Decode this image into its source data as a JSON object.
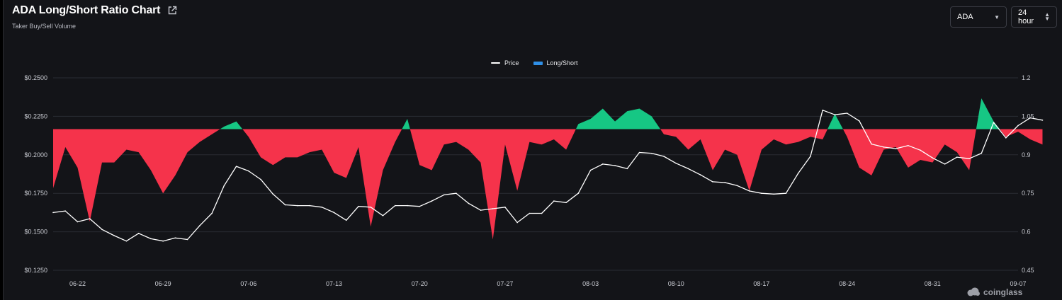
{
  "header": {
    "title": "ADA Long/Short Ratio Chart",
    "subtitle": "Taker Buy/Sell Volume"
  },
  "controls": {
    "coin": "ADA",
    "period": "24 hour"
  },
  "watermark": "coinglass",
  "colors": {
    "background": "#131418",
    "grid": "#2a2c33",
    "price": "#ffffff",
    "long": "#16c784",
    "short": "#f5334b",
    "legend_long_short": "#2f8fe6"
  },
  "chart_data": {
    "type": "line",
    "title": "",
    "xlabel": "",
    "legend": [
      "Price",
      "Long/Short"
    ],
    "legend_position": "top-center",
    "grid": true,
    "x_ticks": [
      "06-22",
      "06-29",
      "07-06",
      "07-13",
      "07-20",
      "07-27",
      "08-03",
      "08-10",
      "08-17",
      "08-24",
      "08-31",
      "09-07"
    ],
    "x_range": [
      "06-20",
      "09-07"
    ],
    "y_left": {
      "ticks": [
        "$0.2500",
        "$0.2250",
        "$0.2000",
        "$0.1750",
        "$0.1500",
        "$0.1250"
      ],
      "range": [
        0.125,
        0.25
      ]
    },
    "y_right": {
      "ticks": [
        "1.2",
        "1.05",
        "0.9",
        "0.75",
        "0.6",
        "0.45"
      ],
      "range": [
        0.45,
        1.2
      ],
      "baseline": 1.0
    },
    "series": [
      {
        "name": "Price",
        "axis": "left",
        "points": [
          [
            "06-20",
            0.1625
          ],
          [
            "06-21",
            0.1635
          ],
          [
            "06-22",
            0.1565
          ],
          [
            "06-23",
            0.1585
          ],
          [
            "06-24",
            0.1515
          ],
          [
            "06-25",
            0.1475
          ],
          [
            "06-26",
            0.144
          ],
          [
            "06-27",
            0.149
          ],
          [
            "06-28",
            0.1455
          ],
          [
            "06-29",
            0.144
          ],
          [
            "06-30",
            0.146
          ],
          [
            "07-01",
            0.145
          ],
          [
            "07-02",
            0.154
          ],
          [
            "07-03",
            0.162
          ],
          [
            "07-04",
            0.18
          ],
          [
            "07-05",
            0.1925
          ],
          [
            "07-06",
            0.1895
          ],
          [
            "07-07",
            0.184
          ],
          [
            "07-08",
            0.1745
          ],
          [
            "07-09",
            0.1675
          ],
          [
            "07-10",
            0.167
          ],
          [
            "07-11",
            0.167
          ],
          [
            "07-12",
            0.166
          ],
          [
            "07-13",
            0.1625
          ],
          [
            "07-14",
            0.1575
          ],
          [
            "07-15",
            0.1665
          ],
          [
            "07-16",
            0.166
          ],
          [
            "07-17",
            0.1605
          ],
          [
            "07-18",
            0.167
          ],
          [
            "07-19",
            0.167
          ],
          [
            "07-20",
            0.1665
          ],
          [
            "07-21",
            0.17
          ],
          [
            "07-22",
            0.174
          ],
          [
            "07-23",
            0.175
          ],
          [
            "07-24",
            0.1685
          ],
          [
            "07-25",
            0.164
          ],
          [
            "07-26",
            0.165
          ],
          [
            "07-27",
            0.166
          ],
          [
            "07-28",
            0.156
          ],
          [
            "07-29",
            0.162
          ],
          [
            "07-30",
            0.162
          ],
          [
            "07-31",
            0.17
          ],
          [
            "08-01",
            0.169
          ],
          [
            "08-02",
            0.175
          ],
          [
            "08-03",
            0.19
          ],
          [
            "08-04",
            0.194
          ],
          [
            "08-05",
            0.193
          ],
          [
            "08-06",
            0.191
          ],
          [
            "08-07",
            0.2015
          ],
          [
            "08-08",
            0.201
          ],
          [
            "08-09",
            0.199
          ],
          [
            "08-10",
            0.1945
          ],
          [
            "08-11",
            0.191
          ],
          [
            "08-12",
            0.187
          ],
          [
            "08-13",
            0.1825
          ],
          [
            "08-14",
            0.182
          ],
          [
            "08-15",
            0.18
          ],
          [
            "08-16",
            0.1765
          ],
          [
            "08-17",
            0.175
          ],
          [
            "08-18",
            0.1745
          ],
          [
            "08-19",
            0.175
          ],
          [
            "08-20",
            0.188
          ],
          [
            "08-21",
            0.199
          ],
          [
            "08-22",
            0.229
          ],
          [
            "08-23",
            0.226
          ],
          [
            "08-24",
            0.227
          ],
          [
            "08-25",
            0.222
          ],
          [
            "08-26",
            0.207
          ],
          [
            "08-27",
            0.205
          ],
          [
            "08-28",
            0.204
          ],
          [
            "08-29",
            0.206
          ],
          [
            "08-30",
            0.203
          ],
          [
            "08-31",
            0.198
          ],
          [
            "09-01",
            0.194
          ],
          [
            "09-02",
            0.1985
          ],
          [
            "09-03",
            0.1975
          ],
          [
            "09-04",
            0.201
          ],
          [
            "09-05",
            0.221
          ],
          [
            "09-06",
            0.211
          ],
          [
            "09-07",
            0.219
          ],
          [
            "09-08",
            0.224
          ],
          [
            "09-09",
            0.2225
          ]
        ]
      },
      {
        "name": "Long/Short",
        "axis": "right",
        "points": [
          [
            "06-20",
            0.77
          ],
          [
            "06-21",
            0.93
          ],
          [
            "06-22",
            0.85
          ],
          [
            "06-23",
            0.64
          ],
          [
            "06-24",
            0.87
          ],
          [
            "06-25",
            0.87
          ],
          [
            "06-26",
            0.92
          ],
          [
            "06-27",
            0.91
          ],
          [
            "06-28",
            0.84
          ],
          [
            "06-29",
            0.75
          ],
          [
            "06-30",
            0.82
          ],
          [
            "07-01",
            0.91
          ],
          [
            "07-02",
            0.95
          ],
          [
            "07-03",
            0.98
          ],
          [
            "07-04",
            1.01
          ],
          [
            "07-05",
            1.03
          ],
          [
            "07-06",
            0.97
          ],
          [
            "07-07",
            0.89
          ],
          [
            "07-08",
            0.86
          ],
          [
            "07-09",
            0.89
          ],
          [
            "07-10",
            0.89
          ],
          [
            "07-11",
            0.91
          ],
          [
            "07-12",
            0.92
          ],
          [
            "07-13",
            0.83
          ],
          [
            "07-14",
            0.81
          ],
          [
            "07-15",
            0.93
          ],
          [
            "07-16",
            0.62
          ],
          [
            "07-17",
            0.84
          ],
          [
            "07-18",
            0.95
          ],
          [
            "07-19",
            1.04
          ],
          [
            "07-20",
            0.86
          ],
          [
            "07-21",
            0.84
          ],
          [
            "07-22",
            0.94
          ],
          [
            "07-23",
            0.95
          ],
          [
            "07-24",
            0.92
          ],
          [
            "07-25",
            0.87
          ],
          [
            "07-26",
            0.57
          ],
          [
            "07-27",
            0.94
          ],
          [
            "07-28",
            0.76
          ],
          [
            "07-29",
            0.95
          ],
          [
            "07-30",
            0.94
          ],
          [
            "07-31",
            0.96
          ],
          [
            "08-01",
            0.92
          ],
          [
            "08-02",
            1.02
          ],
          [
            "08-03",
            1.04
          ],
          [
            "08-04",
            1.08
          ],
          [
            "08-05",
            1.03
          ],
          [
            "08-06",
            1.07
          ],
          [
            "08-07",
            1.08
          ],
          [
            "08-08",
            1.05
          ],
          [
            "08-09",
            0.98
          ],
          [
            "08-10",
            0.97
          ],
          [
            "08-11",
            0.92
          ],
          [
            "08-12",
            0.96
          ],
          [
            "08-13",
            0.84
          ],
          [
            "08-14",
            0.92
          ],
          [
            "08-15",
            0.9
          ],
          [
            "08-16",
            0.76
          ],
          [
            "08-17",
            0.92
          ],
          [
            "08-18",
            0.96
          ],
          [
            "08-19",
            0.94
          ],
          [
            "08-20",
            0.95
          ],
          [
            "08-21",
            0.97
          ],
          [
            "08-22",
            0.96
          ],
          [
            "08-23",
            1.06
          ],
          [
            "08-24",
            0.97
          ],
          [
            "08-25",
            0.85
          ],
          [
            "08-26",
            0.82
          ],
          [
            "08-27",
            0.92
          ],
          [
            "08-28",
            0.93
          ],
          [
            "08-29",
            0.85
          ],
          [
            "08-30",
            0.88
          ],
          [
            "08-31",
            0.87
          ],
          [
            "09-01",
            0.94
          ],
          [
            "09-02",
            0.91
          ],
          [
            "09-03",
            0.84
          ],
          [
            "09-04",
            1.12
          ],
          [
            "09-05",
            1.03
          ],
          [
            "09-06",
            0.97
          ],
          [
            "09-07",
            0.99
          ],
          [
            "09-08",
            0.96
          ],
          [
            "09-09",
            0.94
          ]
        ]
      }
    ]
  }
}
